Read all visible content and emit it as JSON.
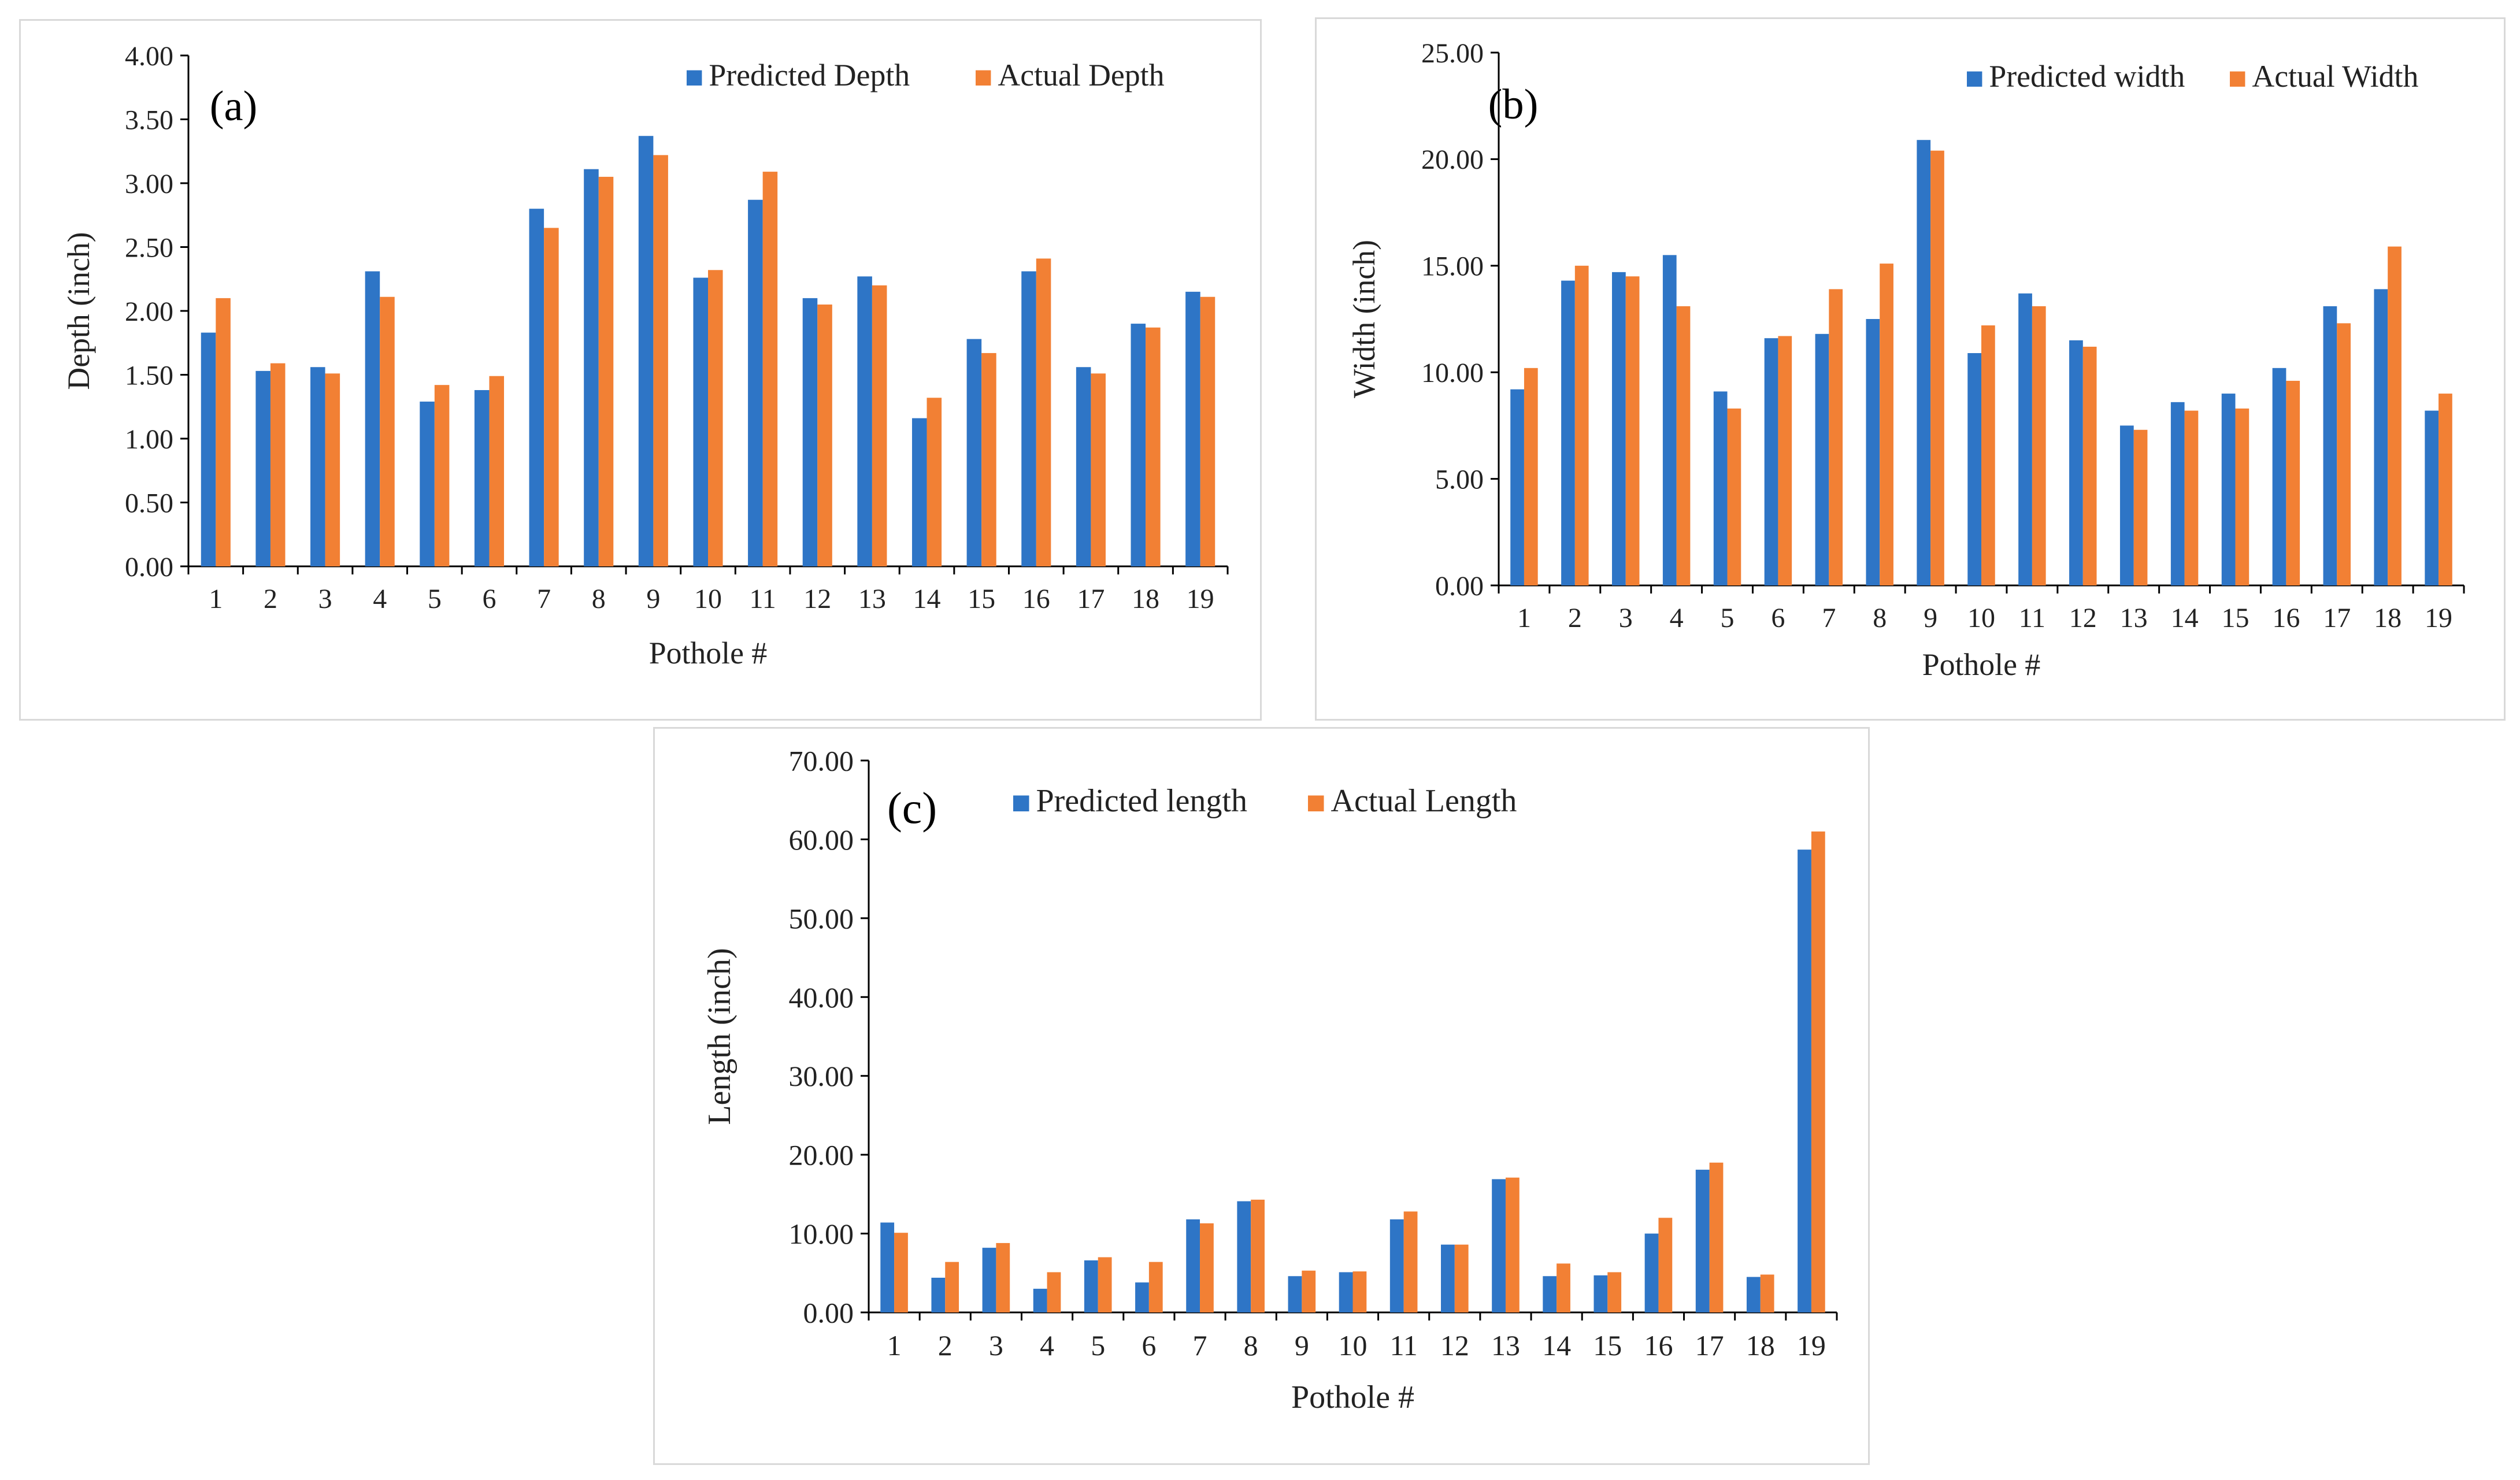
{
  "colors": {
    "predicted": "#2e75c6",
    "actual": "#f28034",
    "axis": "#000000",
    "panel_border": "#d9d9d9"
  },
  "chart_data": [
    {
      "type": "bar",
      "panel_label": "(a)",
      "categories": [
        "1",
        "2",
        "3",
        "4",
        "5",
        "6",
        "7",
        "8",
        "9",
        "10",
        "11",
        "12",
        "13",
        "14",
        "15",
        "16",
        "17",
        "18",
        "19"
      ],
      "series": [
        {
          "name": "Predicted Depth",
          "values": [
            1.83,
            1.53,
            1.56,
            2.31,
            1.29,
            1.38,
            2.8,
            3.11,
            3.37,
            2.26,
            2.87,
            2.1,
            2.27,
            1.16,
            1.78,
            2.31,
            1.56,
            1.9,
            2.15
          ]
        },
        {
          "name": "Actual Depth",
          "values": [
            2.1,
            1.59,
            1.51,
            2.11,
            1.42,
            1.49,
            2.65,
            3.05,
            3.22,
            2.32,
            3.09,
            2.05,
            2.2,
            1.32,
            1.67,
            2.41,
            1.51,
            1.87,
            2.11
          ]
        }
      ],
      "xlabel": "Pothole #",
      "ylabel": "Depth (inch)",
      "ylim": [
        0,
        4
      ],
      "yticks": [
        "0.00",
        "0.50",
        "1.00",
        "1.50",
        "2.00",
        "2.50",
        "3.00",
        "3.50",
        "4.00"
      ],
      "legend_position": "top-right",
      "grid": false
    },
    {
      "type": "bar",
      "panel_label": "(b)",
      "categories": [
        "1",
        "2",
        "3",
        "4",
        "5",
        "6",
        "7",
        "8",
        "9",
        "10",
        "11",
        "12",
        "13",
        "14",
        "15",
        "16",
        "17",
        "18",
        "19"
      ],
      "series": [
        {
          "name": "Predicted width",
          "values": [
            9.2,
            14.3,
            14.7,
            15.5,
            9.1,
            11.6,
            11.8,
            12.5,
            20.9,
            10.9,
            13.7,
            11.5,
            7.5,
            8.6,
            9.0,
            10.2,
            13.1,
            13.9,
            8.2
          ]
        },
        {
          "name": "Actual Width",
          "values": [
            10.2,
            15.0,
            14.5,
            13.1,
            8.3,
            11.7,
            13.9,
            15.1,
            20.4,
            12.2,
            13.1,
            11.2,
            7.3,
            8.2,
            8.3,
            9.6,
            12.3,
            15.9,
            9.0
          ]
        }
      ],
      "xlabel": "Pothole #",
      "ylabel": "Width (inch)",
      "ylim": [
        0,
        25
      ],
      "yticks": [
        "0.00",
        "5.00",
        "10.00",
        "15.00",
        "20.00",
        "25.00"
      ],
      "legend_position": "top-right",
      "grid": false
    },
    {
      "type": "bar",
      "panel_label": "(c)",
      "categories": [
        "1",
        "2",
        "3",
        "4",
        "5",
        "6",
        "7",
        "8",
        "9",
        "10",
        "11",
        "12",
        "13",
        "14",
        "15",
        "16",
        "17",
        "18",
        "19"
      ],
      "series": [
        {
          "name": "Predicted length",
          "values": [
            11.4,
            4.4,
            8.2,
            3.0,
            6.6,
            3.8,
            11.8,
            14.1,
            4.6,
            5.1,
            11.8,
            8.6,
            16.9,
            4.6,
            4.7,
            10.0,
            18.1,
            4.5,
            58.7
          ]
        },
        {
          "name": "Actual Length",
          "values": [
            10.1,
            6.4,
            8.8,
            5.1,
            7.0,
            6.4,
            11.3,
            14.3,
            5.3,
            5.2,
            12.8,
            8.6,
            17.1,
            6.2,
            5.1,
            12.0,
            19.0,
            4.8,
            61.0
          ]
        }
      ],
      "xlabel": "Pothole #",
      "ylabel": "Length (inch)",
      "ylim": [
        0,
        70
      ],
      "yticks": [
        "0.00",
        "10.00",
        "20.00",
        "30.00",
        "40.00",
        "50.00",
        "60.00",
        "70.00"
      ],
      "legend_position": "top-left",
      "grid": false
    }
  ]
}
